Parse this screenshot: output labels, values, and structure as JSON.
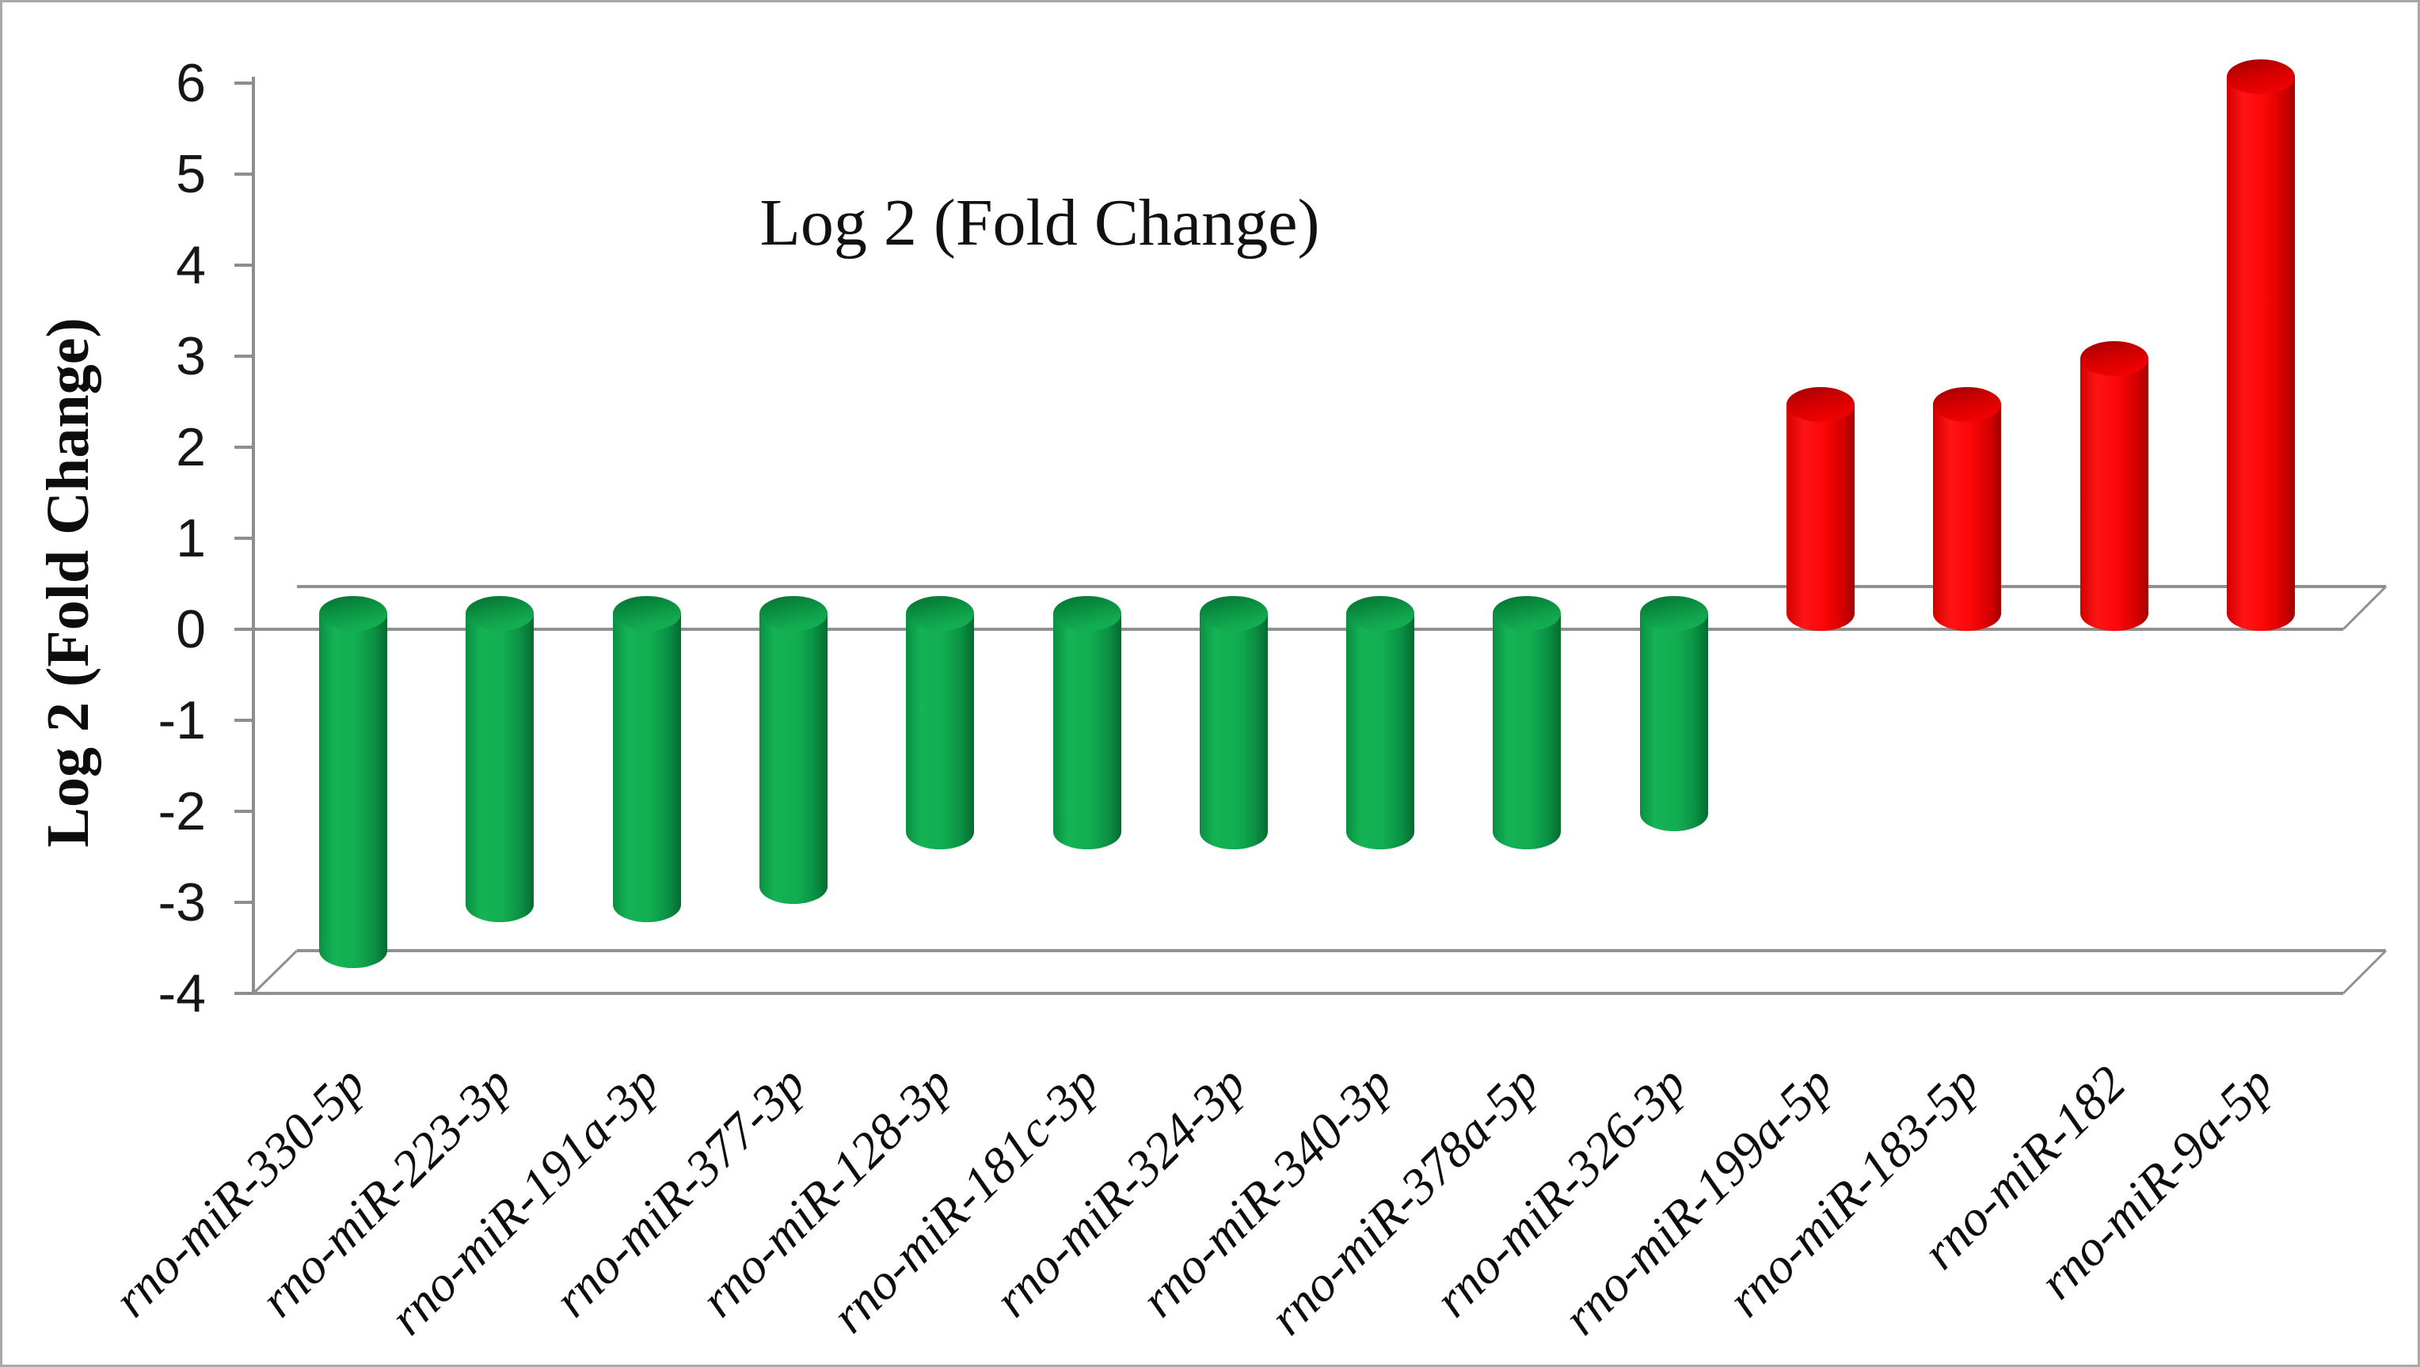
{
  "figure": {
    "background_color": "#ffffff",
    "border_color": "#a9a9a9",
    "axis_line_color": "#8e8e8e",
    "tick_text_color": "#161616"
  },
  "chart_data": {
    "type": "bar",
    "style": "3d-cylinder",
    "title": "Log 2 (Fold Change)",
    "ylabel": "Log 2 (Fold Change)",
    "xlabel": "",
    "categories": [
      "rno-miR-330-5p",
      "rno-miR-223-3p",
      "rno-miR-191a-3p",
      "rno-miR-377-3p",
      "rno-miR-128-3p",
      "rno-miR-181c-3p",
      "rno-miR-324-3p",
      "rno-miR-340-3p",
      "rno-miR-378a-5p",
      "rno-miR-326-3p",
      "rno-miR-199a-5p",
      "rno-miR-183-5p",
      "rno-miR-182",
      "rno-miR-9a-5p"
    ],
    "values": [
      -3.7,
      -3.2,
      -3.2,
      -3.0,
      -2.4,
      -2.4,
      -2.4,
      -2.4,
      -2.4,
      -2.2,
      2.3,
      2.3,
      2.8,
      5.9
    ],
    "ylim": [
      -4,
      6
    ],
    "yticks": [
      6,
      5,
      4,
      3,
      2,
      1,
      0,
      -1,
      -2,
      -3,
      -4
    ],
    "grid": "zero line and floor only",
    "legend": "none",
    "colors": {
      "downregulated": "#10a84f",
      "upregulated": "#f40606"
    }
  }
}
